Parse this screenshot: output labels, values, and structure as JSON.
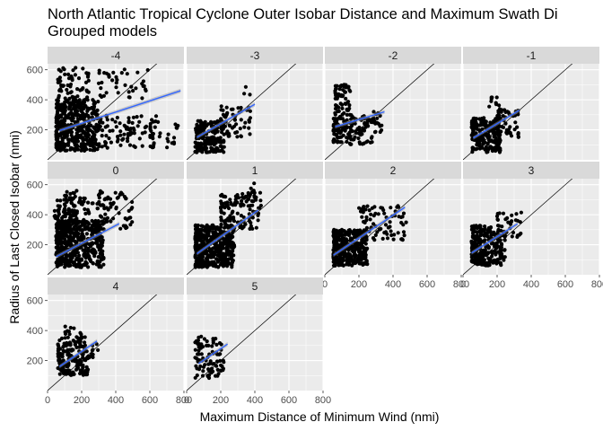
{
  "title_line1": "North Atlantic Tropical Cyclone Outer Isobar Distance and Maximum Swath Di",
  "title_line2": "Grouped models",
  "chart_data": {
    "type": "scatter",
    "title": "North Atlantic Tropical Cyclone Outer Isobar Distance and Maximum Swath Di",
    "subtitle": "Grouped models",
    "xlabel": "Maximum Distance of Minimum Wind (nmi)",
    "ylabel": "Radius of Last Closed Isobar (nmi)",
    "xlim": [
      0,
      800
    ],
    "ylim": [
      0,
      640
    ],
    "x_ticks": [
      0,
      200,
      400,
      600,
      800
    ],
    "y_ticks": [
      200,
      400,
      600
    ],
    "grid": true,
    "reference_line": {
      "slope": 1,
      "intercept": 0,
      "color": "#000000"
    },
    "fit_color": "#3366ff",
    "point_color": "#000000",
    "panel_background": "#ebebeb",
    "strip_background": "#d9d9d9",
    "panels": [
      {
        "label": "-4",
        "fit": [
          [
            70,
            195
          ],
          [
            780,
            460
          ]
        ],
        "clusters": [
          {
            "xr": [
              50,
              300
            ],
            "yr": [
              60,
              400
            ],
            "n": 420
          },
          {
            "xr": [
              300,
              650
            ],
            "yr": [
              80,
              300
            ],
            "n": 90
          },
          {
            "xr": [
              300,
              600
            ],
            "yr": [
              400,
              610
            ],
            "n": 40
          },
          {
            "xr": [
              60,
              250
            ],
            "yr": [
              400,
              620
            ],
            "n": 60
          },
          {
            "xr": [
              600,
              780
            ],
            "yr": [
              80,
              250
            ],
            "n": 25
          }
        ]
      },
      {
        "label": "-3",
        "fit": [
          [
            60,
            150
          ],
          [
            400,
            370
          ]
        ],
        "clusters": [
          {
            "xr": [
              50,
              220
            ],
            "yr": [
              50,
              260
            ],
            "n": 200
          },
          {
            "xr": [
              200,
              380
            ],
            "yr": [
              150,
              360
            ],
            "n": 60
          },
          {
            "xr": [
              330,
              390
            ],
            "yr": [
              420,
              490
            ],
            "n": 3
          }
        ]
      },
      {
        "label": "-2",
        "fit": [
          [
            60,
            220
          ],
          [
            350,
            320
          ]
        ],
        "clusters": [
          {
            "xr": [
              50,
              280
            ],
            "yr": [
              100,
              300
            ],
            "n": 150
          },
          {
            "xr": [
              60,
              150
            ],
            "yr": [
              300,
              500
            ],
            "n": 60
          },
          {
            "xr": [
              280,
              340
            ],
            "yr": [
              180,
              330
            ],
            "n": 20
          }
        ]
      },
      {
        "label": "-1",
        "fit": [
          [
            60,
            145
          ],
          [
            330,
            330
          ]
        ],
        "clusters": [
          {
            "xr": [
              50,
              220
            ],
            "yr": [
              50,
              280
            ],
            "n": 200
          },
          {
            "xr": [
              200,
              330
            ],
            "yr": [
              150,
              340
            ],
            "n": 50
          },
          {
            "xr": [
              150,
              250
            ],
            "yr": [
              300,
              420
            ],
            "n": 10
          }
        ]
      },
      {
        "label": "0",
        "fit": [
          [
            50,
            120
          ],
          [
            420,
            340
          ]
        ],
        "clusters": [
          {
            "xr": [
              50,
              330
            ],
            "yr": [
              50,
              360
            ],
            "n": 500
          },
          {
            "xr": [
              100,
              500
            ],
            "yr": [
              300,
              560
            ],
            "n": 150
          },
          {
            "xr": [
              40,
              180
            ],
            "yr": [
              360,
              500
            ],
            "n": 40
          }
        ]
      },
      {
        "label": "1",
        "fit": [
          [
            60,
            140
          ],
          [
            420,
            430
          ]
        ],
        "clusters": [
          {
            "xr": [
              50,
              280
            ],
            "yr": [
              50,
              330
            ],
            "n": 450
          },
          {
            "xr": [
              200,
              440
            ],
            "yr": [
              300,
              540
            ],
            "n": 120
          },
          {
            "xr": [
              360,
              440
            ],
            "yr": [
              520,
              610
            ],
            "n": 10
          }
        ]
      },
      {
        "label": "2",
        "fit": [
          [
            50,
            130
          ],
          [
            470,
            450
          ]
        ],
        "clusters": [
          {
            "xr": [
              50,
              250
            ],
            "yr": [
              60,
              300
            ],
            "n": 350
          },
          {
            "xr": [
              200,
              480
            ],
            "yr": [
              230,
              460
            ],
            "n": 80
          }
        ]
      },
      {
        "label": "3",
        "fit": [
          [
            50,
            145
          ],
          [
            320,
            340
          ]
        ],
        "clusters": [
          {
            "xr": [
              50,
              250
            ],
            "yr": [
              60,
              330
            ],
            "n": 250
          },
          {
            "xr": [
              200,
              350
            ],
            "yr": [
              250,
              420
            ],
            "n": 30
          }
        ]
      },
      {
        "label": "4",
        "fit": [
          [
            70,
            160
          ],
          [
            290,
            330
          ]
        ],
        "clusters": [
          {
            "xr": [
              60,
              240
            ],
            "yr": [
              100,
              360
            ],
            "n": 180
          },
          {
            "xr": [
              100,
              200
            ],
            "yr": [
              360,
              430
            ],
            "n": 10
          },
          {
            "xr": [
              240,
              300
            ],
            "yr": [
              200,
              330
            ],
            "n": 10
          }
        ]
      },
      {
        "label": "5",
        "fit": [
          [
            70,
            180
          ],
          [
            240,
            310
          ]
        ],
        "clusters": [
          {
            "xr": [
              50,
              220
            ],
            "yr": [
              80,
              360
            ],
            "n": 90
          }
        ]
      }
    ]
  }
}
